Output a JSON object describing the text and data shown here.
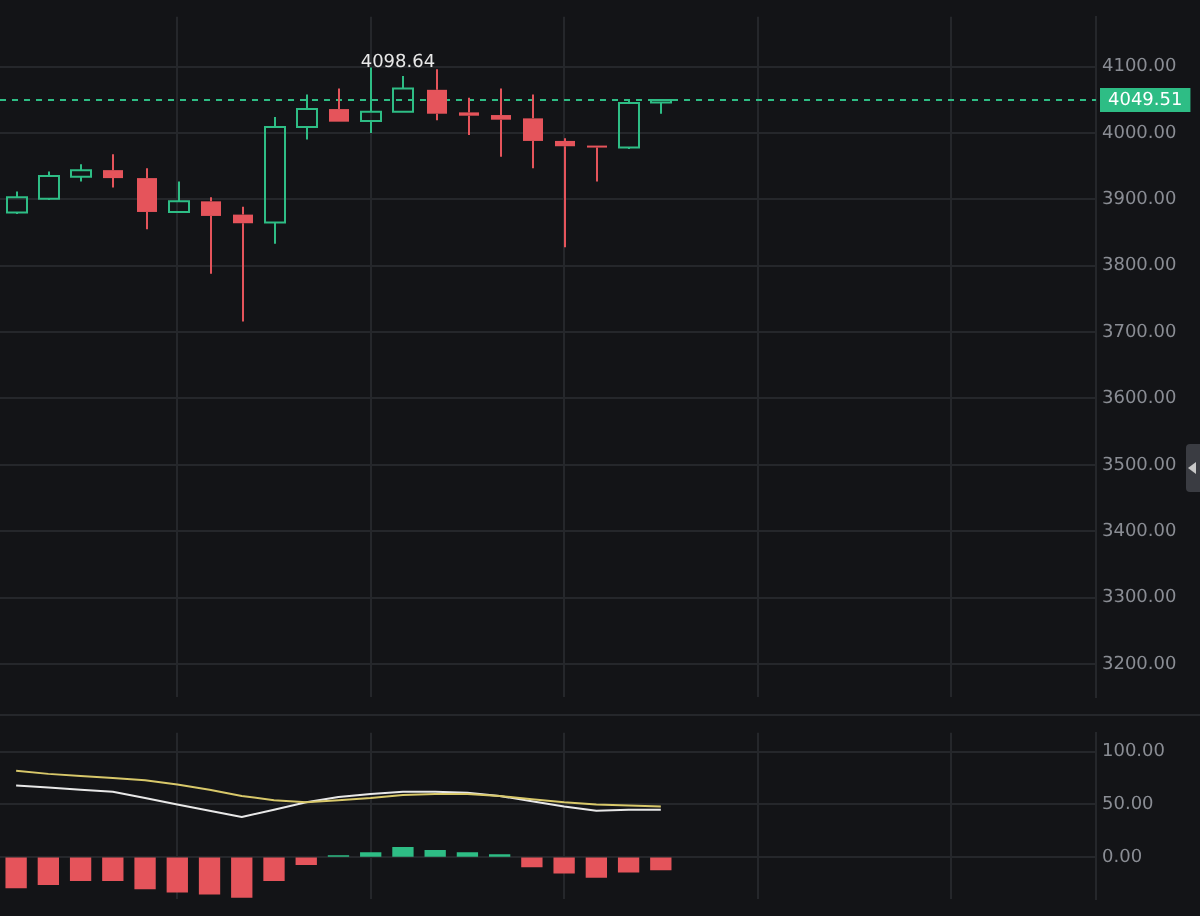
{
  "chart_data": [
    {
      "type": "candlestick",
      "categories": [
        null,
        null,
        null,
        null,
        null,
        null,
        null,
        null,
        null,
        null,
        null,
        null,
        null,
        null,
        null,
        null,
        null,
        null,
        null,
        null,
        null,
        null,
        null,
        null,
        null,
        null,
        null,
        null,
        null,
        null,
        null,
        null,
        null,
        null
      ],
      "ohlc": [
        [
          3880,
          3912,
          3878,
          3903
        ],
        [
          3901,
          3942,
          3899,
          3935
        ],
        [
          3934,
          3953,
          3927,
          3944
        ],
        [
          3944,
          3968,
          3918,
          3932
        ],
        [
          3932,
          3947,
          3855,
          3881
        ],
        [
          3881,
          3927,
          3881,
          3897
        ],
        [
          3897,
          3903,
          3788,
          3875
        ],
        [
          3877,
          3889,
          3716,
          3864
        ],
        [
          3865,
          4024,
          3833,
          4009
        ],
        [
          4009,
          4058,
          3990,
          4036
        ],
        [
          4036,
          4067,
          4017,
          4017
        ],
        [
          4018,
          4098.64,
          4000,
          4032
        ],
        [
          4032,
          4086,
          4032,
          4067
        ],
        [
          4065,
          4096,
          4019,
          4029
        ],
        [
          4031,
          4053,
          3997,
          4026
        ],
        [
          4027,
          4067,
          3964,
          4020
        ],
        [
          4022,
          4058,
          3947,
          3988
        ],
        [
          3988,
          3992,
          3828,
          3980
        ],
        [
          3981,
          3981,
          3927,
          3978
        ],
        [
          3978,
          4049,
          3976,
          4045
        ],
        [
          4046,
          4050,
          4029,
          4049.51
        ],
        null,
        null,
        null,
        null,
        null,
        null,
        null,
        null,
        null,
        null,
        null,
        null,
        null
      ],
      "colors": [
        "#2ebd85",
        "#2ebd85",
        "#2ebd85",
        "#e5545b",
        "#e5545b",
        "#2ebd85",
        "#e5545b",
        "#e5545b",
        "#2ebd85",
        "#2ebd85",
        "#e5545b",
        "#2ebd85",
        "#2ebd85",
        "#e5545b",
        "#e5545b",
        "#e5545b",
        "#e5545b",
        "#e5545b",
        "#e5545b",
        "#2ebd85",
        "#2ebd85",
        null,
        null,
        null,
        null,
        null,
        null,
        null,
        null,
        null,
        null,
        null,
        null,
        null
      ],
      "ylim": [
        3150,
        4175
      ],
      "yticks": [
        {
          "value": 3200,
          "label": "3200.00"
        },
        {
          "value": 3300,
          "label": "3300.00"
        },
        {
          "value": 3400,
          "label": "3400.00"
        },
        {
          "value": 3500,
          "label": "3500.00"
        },
        {
          "value": 3600,
          "label": "3600.00"
        },
        {
          "value": 3700,
          "label": "3700.00"
        },
        {
          "value": 3800,
          "label": "3800.00"
        },
        {
          "value": 3900,
          "label": "3900.00"
        },
        {
          "value": 4000,
          "label": "4000.00"
        },
        {
          "value": 4100,
          "label": "4100.00"
        }
      ],
      "ref_lines": [
        {
          "axis": "y",
          "value": 4049.51,
          "label": "4049.51",
          "color": "#2ebd85",
          "line_style": "dashed"
        }
      ],
      "annotations": [
        {
          "text": "4098.64",
          "y": 4098.64
        }
      ],
      "grid": true,
      "tick_labels": "y",
      "legend": false
    },
    {
      "type": "bar",
      "categories": [
        null,
        null,
        null,
        null,
        null,
        null,
        null,
        null,
        null,
        null,
        null,
        null,
        null,
        null,
        null,
        null,
        null,
        null,
        null,
        null,
        null,
        null,
        null,
        null,
        null,
        null,
        null,
        null,
        null,
        null,
        null,
        null,
        null,
        null
      ],
      "series": [
        {
          "type": "bar",
          "colors": [
            "#e5545b",
            "#e5545b",
            "#e5545b",
            "#e5545b",
            "#e5545b",
            "#e5545b",
            "#e5545b",
            "#e5545b",
            "#e5545b",
            "#e5545b",
            "#2ebd85",
            "#2ebd85",
            "#2ebd85",
            "#2ebd85",
            "#2ebd85",
            "#2ebd85",
            "#e5545b",
            "#e5545b",
            "#e5545b",
            "#e5545b",
            "#e5545b",
            null,
            null,
            null,
            null,
            null,
            null,
            null,
            null,
            null,
            null,
            null,
            null,
            null
          ],
          "values": [
            -29,
            -26,
            -22,
            -22,
            -30,
            -33,
            -35,
            -38,
            -22,
            -7,
            1,
            4,
            9,
            6,
            4,
            2,
            -9,
            -15,
            -19,
            -14,
            -12,
            null,
            null,
            null,
            null,
            null,
            null,
            null,
            null,
            null,
            null,
            null,
            null,
            null
          ]
        },
        {
          "type": "line",
          "color": "#d8c86a",
          "values": [
            82,
            79,
            77,
            75,
            73,
            69,
            64,
            58,
            54,
            52,
            54,
            56,
            59,
            60,
            60,
            58,
            55,
            52,
            50,
            49,
            48,
            null,
            null,
            null,
            null,
            null,
            null,
            null,
            null,
            null,
            null,
            null,
            null,
            null
          ]
        },
        {
          "type": "line",
          "color": "#e8e8e8",
          "values": [
            68,
            66,
            64,
            62,
            56,
            50,
            44,
            38,
            45,
            52,
            57,
            60,
            62,
            62,
            61,
            58,
            53,
            48,
            44,
            45,
            45,
            null,
            null,
            null,
            null,
            null,
            null,
            null,
            null,
            null,
            null,
            null,
            null,
            null
          ]
        }
      ],
      "ylim": [
        -40,
        118
      ],
      "yticks": [
        {
          "value": 0,
          "label": "0.00"
        },
        {
          "value": 50,
          "label": "50.00"
        },
        {
          "value": 100,
          "label": "100.00"
        }
      ],
      "grid": true,
      "tick_labels": "y",
      "legend": false,
      "marker": "none",
      "line_style": "solid"
    }
  ]
}
